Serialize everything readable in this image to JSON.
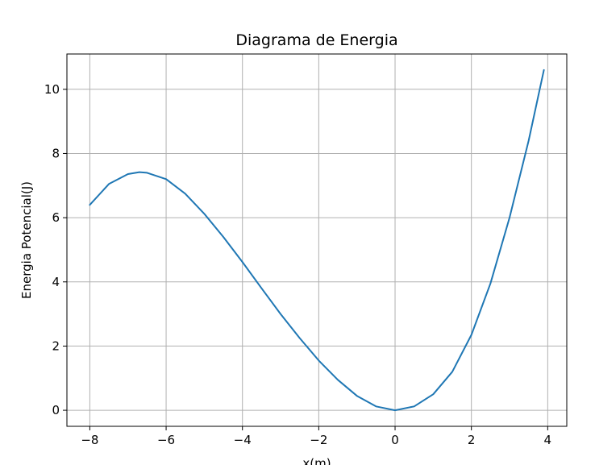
{
  "chart_data": {
    "type": "line",
    "title": "Diagrama de Energia",
    "xlabel": "x(m)",
    "ylabel": "Energia Potencial(J)",
    "xlim": [
      -8.6,
      4.5
    ],
    "ylim": [
      -0.5,
      11.1
    ],
    "grid": true,
    "xticks": [
      -8,
      -6,
      -4,
      -2,
      0,
      2,
      4
    ],
    "xtick_labels": [
      "−8",
      "−6",
      "−4",
      "−2",
      "0",
      "2",
      "4"
    ],
    "yticks": [
      0,
      2,
      4,
      6,
      8,
      10
    ],
    "ytick_labels": [
      "0",
      "2",
      "4",
      "6",
      "8",
      "10"
    ],
    "line_color": "#1f77b4",
    "grid_color": "#b0b0b0",
    "series": [
      {
        "x": [
          -8.0,
          -7.5,
          -7.0,
          -6.7,
          -6.5,
          -6.0,
          -5.5,
          -5.0,
          -4.5,
          -4.0,
          -3.5,
          -3.0,
          -2.5,
          -2.0,
          -1.5,
          -1.0,
          -0.5,
          0.0,
          0.5,
          1.0,
          1.5,
          2.0,
          2.5,
          3.0,
          3.5,
          3.9
        ],
        "y": [
          6.4,
          7.05,
          7.36,
          7.42,
          7.4,
          7.2,
          6.75,
          6.12,
          5.4,
          4.62,
          3.8,
          3.0,
          2.25,
          1.55,
          0.95,
          0.45,
          0.12,
          0.0,
          0.12,
          0.5,
          1.2,
          2.35,
          3.95,
          6.0,
          8.4,
          10.6
        ]
      }
    ]
  }
}
